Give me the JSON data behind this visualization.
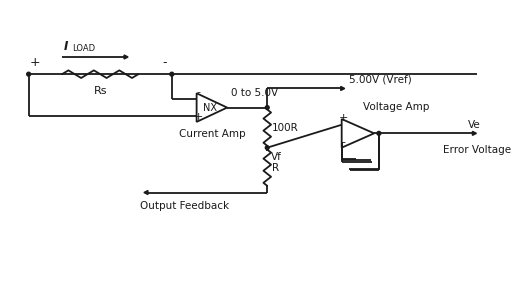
{
  "bg_color": "#ffffff",
  "line_color": "#1a1a1a",
  "components": {
    "iload_label": "I",
    "iload_sub": "LOAD",
    "rs_label": "Rs",
    "current_amp_label": "NX",
    "current_amp_sublabel": "Current Amp",
    "output_range": "0 to 5.0V",
    "r100_label": "100R",
    "r_label": "R",
    "vf_label": "Vf",
    "vref_label": "5.00V (Vref)",
    "voltage_amp_label": "Voltage Amp",
    "ve_label": "Ve",
    "error_voltage_label": "Error Voltage",
    "output_feedback_label": "Output Feedback",
    "plus": "+",
    "minus": "-"
  },
  "layout": {
    "fig_w": 5.2,
    "fig_h": 2.81,
    "dpi": 100
  }
}
